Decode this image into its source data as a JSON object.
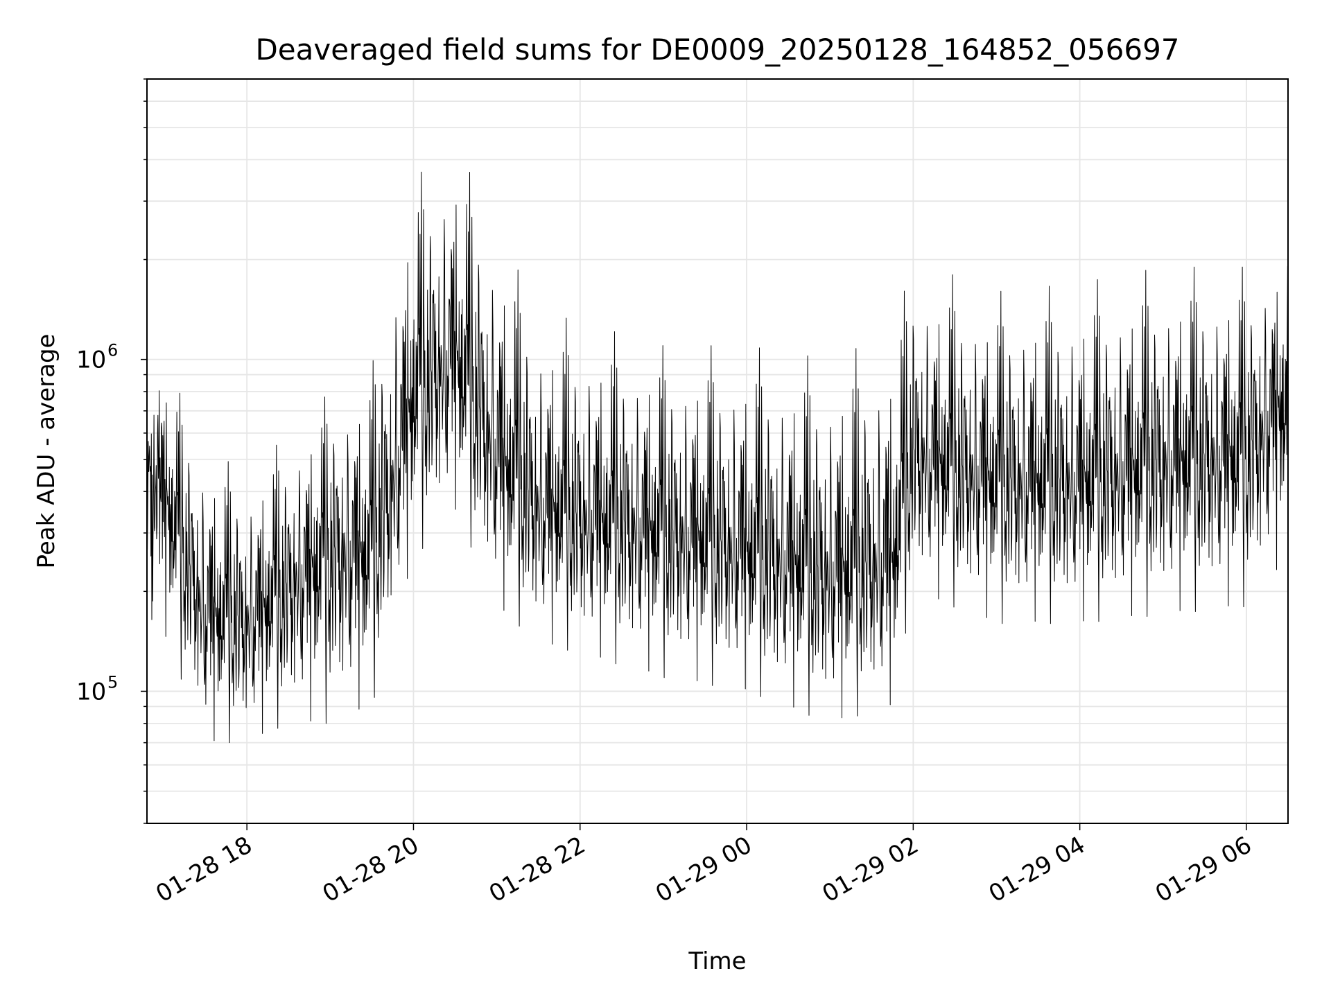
{
  "chart_data": {
    "type": "line",
    "title": "Deaveraged field sums for DE0009_20250128_164852_056697",
    "xlabel": "Time",
    "ylabel": "Peak ADU - average",
    "yscale": "log",
    "xlim": [
      "01-28 16:48",
      "01-29 06:30"
    ],
    "ylim": [
      40000,
      7000000
    ],
    "x_ticks": [
      "01-28 18",
      "01-28 20",
      "01-28 22",
      "01-29 00",
      "01-29 02",
      "01-29 04",
      "01-29 06"
    ],
    "y_ticks": [
      {
        "base": "10",
        "exp": "5",
        "value": 100000
      },
      {
        "base": "10",
        "exp": "6",
        "value": 1000000
      }
    ],
    "grid": true,
    "legend": "none",
    "series": [
      {
        "color": "#000000",
        "x": [
          "01-28 17:00",
          "01-28 17:30",
          "01-28 18:00",
          "01-28 18:30",
          "01-28 19:00",
          "01-28 19:30",
          "01-28 19:45",
          "01-28 20:00",
          "01-28 20:30",
          "01-28 21:00",
          "01-28 21:30",
          "01-28 22:00",
          "01-28 23:00",
          "01-29 00:00",
          "01-29 01:00",
          "01-29 01:45",
          "01-29 02:00",
          "01-29 03:00",
          "01-29 04:00",
          "01-29 05:00",
          "01-29 06:00",
          "01-29 06:30"
        ],
        "values": [
          420000,
          180000,
          170000,
          220000,
          280000,
          280000,
          450000,
          850000,
          1100000,
          550000,
          380000,
          350000,
          320000,
          280000,
          240000,
          260000,
          550000,
          450000,
          450000,
          520000,
          550000,
          850000
        ],
        "upper_envelope": [
          1000000,
          550000,
          450000,
          600000,
          800000,
          950000,
          2000000,
          3500000,
          4500000,
          2500000,
          1400000,
          1300000,
          1100000,
          1100000,
          1000000,
          1200000,
          2000000,
          1600000,
          1700000,
          1900000,
          1900000,
          2300000
        ],
        "lower_envelope": [
          150000,
          70000,
          70000,
          80000,
          80000,
          90000,
          150000,
          250000,
          350000,
          180000,
          140000,
          130000,
          110000,
          100000,
          80000,
          90000,
          200000,
          160000,
          160000,
          170000,
          180000,
          250000
        ]
      }
    ]
  }
}
